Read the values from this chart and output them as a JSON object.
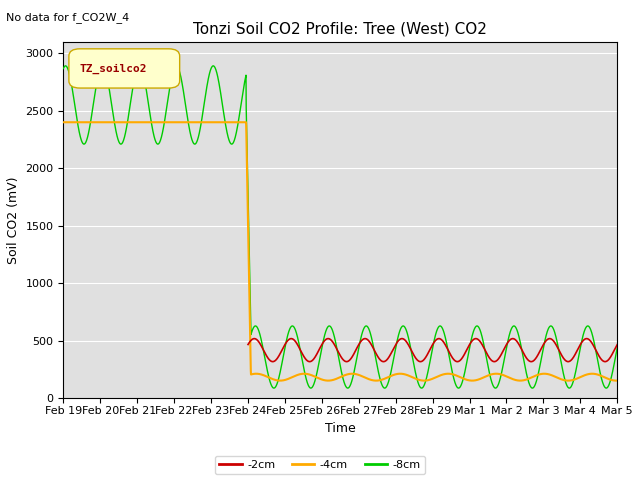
{
  "title": "Tonzi Soil CO2 Profile: Tree (West) CO2",
  "no_data_text": "No data for f_CO2W_4",
  "ylabel": "Soil CO2 (mV)",
  "xlabel": "Time",
  "legend_label": "TZ_soilco2",
  "ylim": [
    0,
    3100
  ],
  "bg_color": "#e0e0e0",
  "line_colors": {
    "neg2cm": "#cc0000",
    "neg4cm": "#ffaa00",
    "neg8cm": "#00cc00"
  },
  "legend_entries": [
    "-2cm",
    "-4cm",
    "-8cm"
  ],
  "xtick_labels": [
    "Feb 19",
    "Feb 20",
    "Feb 21",
    "Feb 22",
    "Feb 23",
    "Feb 24",
    "Feb 25",
    "Feb 26",
    "Feb 27",
    "Feb 28",
    "Feb 29",
    "Mar 1",
    "Mar 2",
    "Mar 3",
    "Mar 4",
    "Mar 5"
  ],
  "transition_day": 5.0,
  "phase1_green_mean": 2550,
  "phase1_green_amp": 340,
  "phase1_orange_val": 2400,
  "phase2_green_mean": 360,
  "phase2_green_amp": 270,
  "phase2_orange_mean": 185,
  "phase2_orange_amp": 30,
  "phase2_red_mean": 420,
  "phase2_red_amp": 100,
  "title_fontsize": 11,
  "axis_label_fontsize": 9,
  "tick_fontsize": 8,
  "legend_box_facecolor": "#ffffcc",
  "legend_box_edgecolor": "#ccaa00"
}
